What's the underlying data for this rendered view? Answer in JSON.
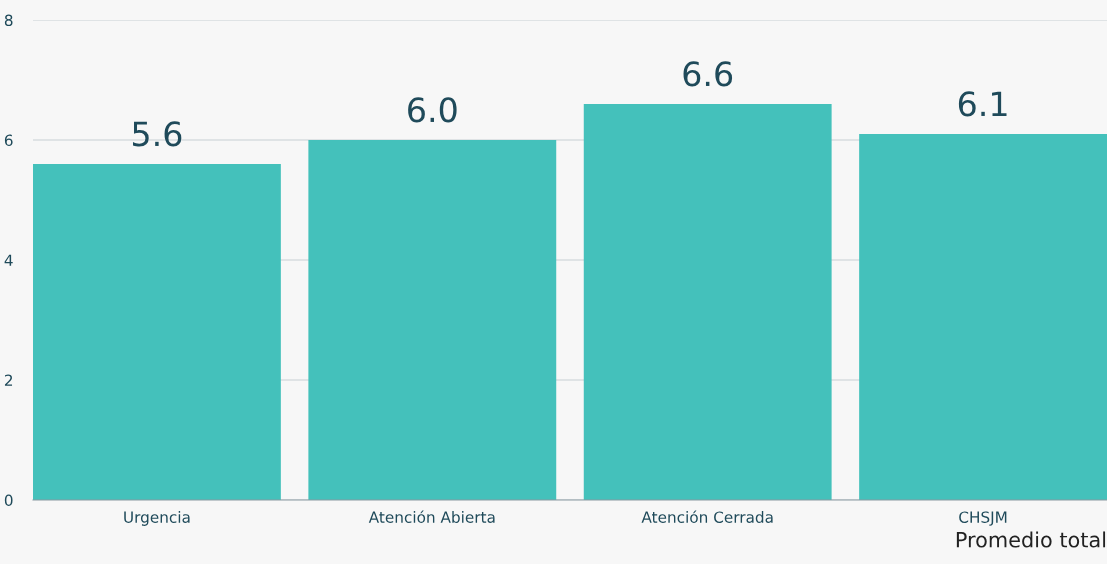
{
  "chart_data": {
    "type": "bar",
    "categories": [
      "Urgencia",
      "Atención Abierta",
      "Atención Cerrada",
      "CHSJM"
    ],
    "values": [
      5.6,
      6.0,
      6.6,
      6.1
    ],
    "value_labels": [
      "5.6",
      "6.0",
      "6.6",
      "6.1"
    ],
    "color": "#44c1bb",
    "xlabel": "Promedio total",
    "ylim": [
      0,
      8
    ],
    "yticks": [
      0,
      2,
      4,
      6,
      8
    ],
    "grid": "y",
    "legend": false
  }
}
